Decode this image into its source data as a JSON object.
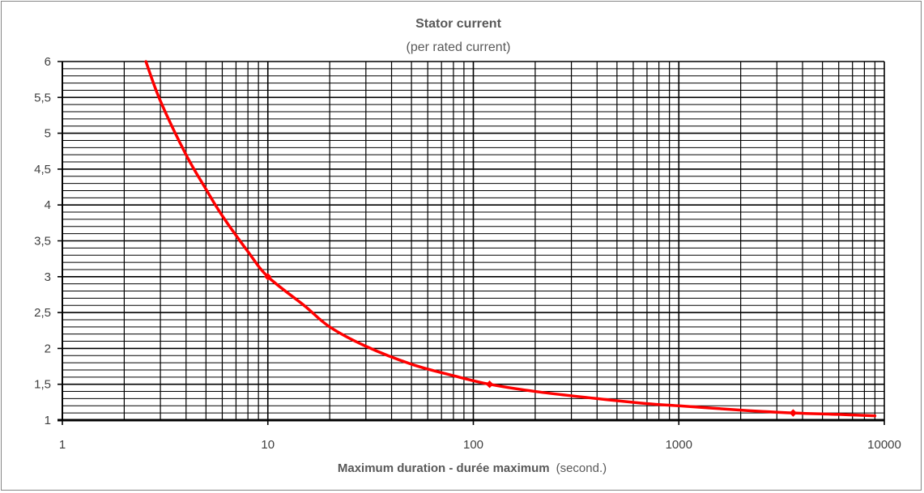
{
  "chart_data": {
    "type": "line",
    "title": "Stator current",
    "subtitle": "(per rated current)",
    "xlabel": "Maximum duration - durée maximum",
    "xlabel_unit": "(second.)",
    "x_scale": "log",
    "xlim": [
      1,
      10000
    ],
    "ylim": [
      1,
      6
    ],
    "x_tick_labels": [
      "1",
      "10",
      "100",
      "1000",
      "10000"
    ],
    "y_tick_labels": [
      "1",
      "1,5",
      "2",
      "2,5",
      "3",
      "3,5",
      "4",
      "4,5",
      "5",
      "5,5",
      "6"
    ],
    "grid": true,
    "series": [
      {
        "color": "#ff0000",
        "x": [
          2.55,
          3,
          4,
          5,
          6,
          8,
          10,
          15,
          20,
          30,
          50,
          80,
          120,
          200,
          400,
          700,
          1000,
          2000,
          3600,
          6000,
          9000
        ],
        "y": [
          6.0,
          5.45,
          4.7,
          4.22,
          3.85,
          3.35,
          3.0,
          2.6,
          2.3,
          2.03,
          1.78,
          1.62,
          1.5,
          1.4,
          1.3,
          1.23,
          1.2,
          1.14,
          1.1,
          1.08,
          1.06
        ]
      }
    ],
    "markers": [
      {
        "x": 10,
        "y": 3.0
      },
      {
        "x": 120,
        "y": 1.5
      },
      {
        "x": 3600,
        "y": 1.1
      }
    ]
  }
}
